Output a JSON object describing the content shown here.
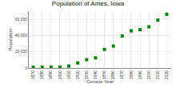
{
  "chart_data": {
    "type": "scatter",
    "title": "Population of Ames, Iowa",
    "xlabel": "Census Year",
    "ylabel": "Population",
    "x": [
      1870,
      1880,
      1890,
      1900,
      1910,
      1920,
      1930,
      1940,
      1950,
      1960,
      1970,
      1980,
      1990,
      2000,
      2010,
      2020
    ],
    "values": [
      835,
      1153,
      1276,
      1282,
      2422,
      6270,
      10261,
      12555,
      22898,
      27003,
      39505,
      45775,
      47198,
      50731,
      58965,
      66258
    ],
    "color": "#008000",
    "marker": "square",
    "xlim": [
      1865,
      2025
    ],
    "xticks": [
      1870,
      1880,
      1890,
      1900,
      1910,
      1920,
      1930,
      1940,
      1950,
      1960,
      1970,
      1980,
      1990,
      2000,
      2010,
      2020
    ],
    "ylim": [
      0,
      70000
    ],
    "yticks": [
      0,
      {
        "value": 20000,
        "label": "20,000"
      },
      {
        "value": 40000,
        "label": "40,000"
      },
      {
        "value": 60000,
        "label": "60,000"
      }
    ],
    "grid": true
  }
}
